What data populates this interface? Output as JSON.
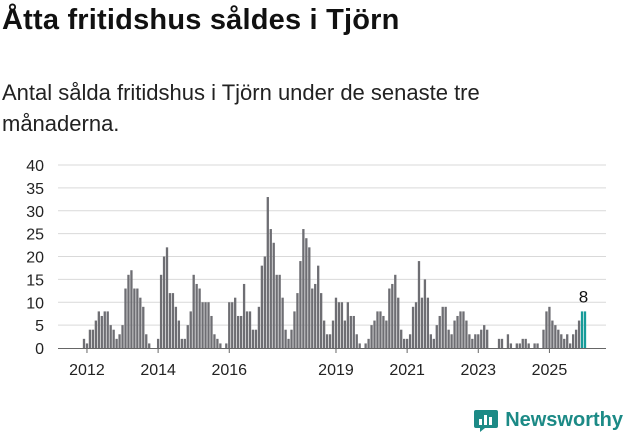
{
  "header": {
    "title": "Åtta fritidshus såldes i Tjörn",
    "subtitle": "Antal sålda fritidshus i Tjörn under de senaste tre månaderna."
  },
  "brand": {
    "name": "Newsworthy",
    "color": "#1c8a86"
  },
  "colors": {
    "bar": "#6e6e73",
    "highlight": "#179b99",
    "grid": "#d9d9d9",
    "axis": "#666666"
  },
  "chart_data": {
    "type": "bar",
    "title": "",
    "xlabel": "",
    "ylabel": "",
    "ylim": [
      0,
      40
    ],
    "yticks": [
      0,
      5,
      10,
      15,
      20,
      25,
      30,
      35,
      40
    ],
    "xticks": [
      {
        "label": "2012",
        "index": 1
      },
      {
        "label": "2014",
        "index": 25
      },
      {
        "label": "2016",
        "index": 49
      },
      {
        "label": "2019",
        "index": 85
      },
      {
        "label": "2021",
        "index": 109
      },
      {
        "label": "2023",
        "index": 133
      },
      {
        "label": "2025",
        "index": 157
      }
    ],
    "values": [
      2,
      1,
      4,
      4,
      6,
      8,
      7,
      8,
      8,
      5,
      4,
      2,
      3,
      5,
      13,
      16,
      17,
      13,
      13,
      11,
      9,
      3,
      1,
      0,
      0,
      2,
      16,
      20,
      22,
      12,
      12,
      9,
      6,
      2,
      2,
      5,
      8,
      16,
      14,
      13,
      10,
      10,
      10,
      7,
      3,
      2,
      1,
      0,
      1,
      10,
      10,
      11,
      7,
      7,
      14,
      8,
      8,
      4,
      4,
      9,
      18,
      20,
      33,
      26,
      23,
      16,
      16,
      11,
      4,
      2,
      4,
      8,
      12,
      19,
      26,
      24,
      22,
      13,
      14,
      18,
      12,
      6,
      3,
      3,
      6,
      11,
      10,
      10,
      6,
      10,
      7,
      7,
      3,
      1,
      0,
      1,
      2,
      5,
      6,
      8,
      8,
      7,
      6,
      13,
      14,
      16,
      11,
      4,
      2,
      2,
      3,
      9,
      10,
      19,
      11,
      15,
      11,
      3,
      2,
      5,
      7,
      9,
      9,
      4,
      3,
      6,
      7,
      8,
      8,
      6,
      3,
      2,
      3,
      3,
      4,
      5,
      4,
      0,
      0,
      0,
      2,
      2,
      0,
      3,
      1,
      0,
      1,
      1,
      2,
      2,
      1,
      0,
      1,
      1,
      0,
      4,
      8,
      9,
      6,
      5,
      4,
      3,
      2,
      3,
      1,
      3,
      4,
      6,
      8,
      8
    ],
    "highlight_last": 2,
    "last_label": "8"
  }
}
